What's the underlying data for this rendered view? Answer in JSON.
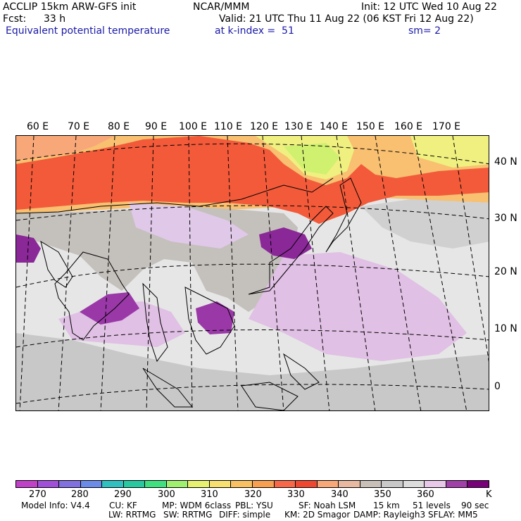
{
  "header": {
    "model": "ACCLIP 15km ARW-GFS init",
    "center": "NCAR/MMM",
    "init": "Init: 12 UTC Wed 10 Aug 22",
    "fcst_label": "Fcst:",
    "fcst_value": "33 h",
    "valid": "Valid: 21 UTC Thu 11 Aug 22 (06 KST Fri 12 Aug 22)",
    "field": "Equivalent potential temperature",
    "level": "at k-index =  51",
    "smooth": "sm= 2"
  },
  "map": {
    "lon_labels": [
      "60 E",
      "70 E",
      "80 E",
      "90 E",
      "100 E",
      "110 E",
      "120 E",
      "130 E",
      "140 E",
      "150 E",
      "160 E",
      "170 E"
    ],
    "lat_labels": [
      "40 N",
      "30 N",
      "20 N",
      "10 N",
      "0"
    ]
  },
  "legend": {
    "colors": [
      "#c040c8",
      "#a050d8",
      "#8070e0",
      "#6a8ce8",
      "#30c0c0",
      "#28c8a0",
      "#40e080",
      "#a0f070",
      "#e8f070",
      "#f8e070",
      "#f8c060",
      "#f8a050",
      "#f86848",
      "#f04830",
      "#f8a878",
      "#e8b8a0",
      "#c8c0b8",
      "#c8c8c8",
      "#dcdcdc",
      "#e8c8e8",
      "#a040a8",
      "#780078"
    ],
    "ticks": [
      "270",
      "280",
      "290",
      "300",
      "310",
      "320",
      "330",
      "340",
      "350",
      "360",
      "K"
    ]
  },
  "footer": {
    "line1": [
      "Model Info: V4.4",
      "CU: KF",
      "MP: WDM 6class",
      "PBL: YSU",
      "SF: Noah LSM",
      "15 km",
      "51 levels",
      "90 sec"
    ],
    "line2": [
      "LW: RRTMG",
      "SW: RRTMG",
      "DIFF: simple",
      "KM: 2D Smagor",
      "DAMP: Rayleigh3",
      "SFLAY: MM5"
    ]
  }
}
